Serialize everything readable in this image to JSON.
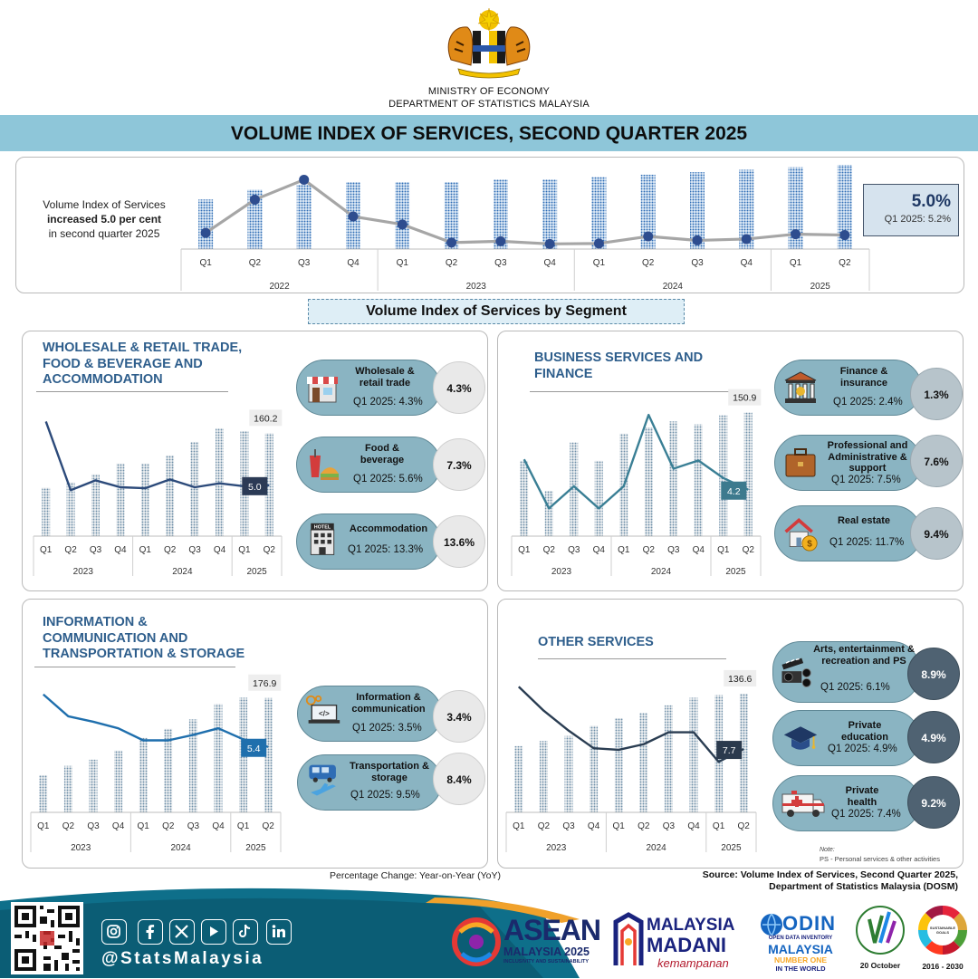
{
  "header": {
    "ministry": "MINISTRY OF ECONOMY",
    "department": "DEPARTMENT OF STATISTICS MALAYSIA",
    "title": "VOLUME INDEX OF SERVICES, SECOND QUARTER 2025"
  },
  "headline": {
    "note_line1": "Volume Index of Services",
    "note_line2": "increased 5.0 per cent",
    "note_line3": "in second quarter 2025",
    "kpi_value": "5.0%",
    "kpi_prev": "Q1 2025: 5.2%"
  },
  "segment_heading": "Volume Index of Services by Segment",
  "chart_data": [
    {
      "id": "overall",
      "type": "bar",
      "categories": [
        "Q1",
        "Q2",
        "Q3",
        "Q4",
        "Q1",
        "Q2",
        "Q3",
        "Q4",
        "Q1",
        "Q2",
        "Q3",
        "Q4",
        "Q1",
        "Q2"
      ],
      "years": [
        {
          "label": "2022",
          "span": 4
        },
        {
          "label": "2023",
          "span": 4
        },
        {
          "label": "2024",
          "span": 4
        },
        {
          "label": "2025",
          "span": 2
        }
      ],
      "series": [
        {
          "type": "bar",
          "values": [
            116,
            120,
            122,
            123,
            123,
            123,
            124,
            124,
            125,
            126,
            127,
            128,
            129,
            130
          ]
        },
        {
          "type": "line",
          "values": [
            5.5,
            13.0,
            17.5,
            9.2,
            7.4,
            3.3,
            3.6,
            3.0,
            3.1,
            4.7,
            3.8,
            4.1,
            5.2,
            5.0
          ]
        }
      ],
      "labels": [],
      "title": "",
      "xlabel": "",
      "ylabel": "",
      "grid": false
    },
    {
      "id": "wholesale",
      "type": "bar",
      "title": "WHOLESALE & RETAIL TRADE, FOOD & BEVERAGE AND ACCOMMODATION",
      "categories": [
        "Q1",
        "Q2",
        "Q3",
        "Q4",
        "Q1",
        "Q2",
        "Q3",
        "Q4",
        "Q1",
        "Q2"
      ],
      "years": [
        {
          "label": "2023",
          "span": 4
        },
        {
          "label": "2024",
          "span": 4
        },
        {
          "label": "2025",
          "span": 2
        }
      ],
      "series": [
        {
          "type": "bar",
          "values": [
            140,
            142,
            145,
            149,
            149,
            152,
            157,
            162,
            161,
            160.2
          ]
        },
        {
          "type": "line",
          "values": [
            11.5,
            4.5,
            5.5,
            4.8,
            4.7,
            5.6,
            4.8,
            5.2,
            4.9,
            5.0
          ]
        }
      ],
      "labels": [
        "160.2",
        "5.0"
      ],
      "xlabel": "",
      "ylabel": "",
      "grid": false
    },
    {
      "id": "business",
      "type": "bar",
      "title": "BUSINESS SERVICES AND FINANCE",
      "categories": [
        "Q1",
        "Q2",
        "Q3",
        "Q4",
        "Q1",
        "Q2",
        "Q3",
        "Q4",
        "Q1",
        "Q2"
      ],
      "years": [
        {
          "label": "2023",
          "span": 4
        },
        {
          "label": "2024",
          "span": 4
        },
        {
          "label": "2025",
          "span": 2
        }
      ],
      "series": [
        {
          "type": "bar",
          "values": [
            135,
            125,
            141,
            135,
            144,
            146,
            148,
            147,
            150,
            150.9
          ]
        },
        {
          "type": "line",
          "values": [
            6.8,
            2.6,
            4.5,
            2.6,
            4.5,
            10.6,
            6.0,
            6.7,
            5.2,
            4.2
          ]
        }
      ],
      "labels": [
        "150.9",
        "4.2"
      ],
      "xlabel": "",
      "ylabel": "",
      "grid": false
    },
    {
      "id": "infocomm",
      "type": "bar",
      "title": "INFORMATION & COMMUNICATION AND TRANSPORTATION & STORAGE",
      "categories": [
        "Q1",
        "Q2",
        "Q3",
        "Q4",
        "Q1",
        "Q2",
        "Q3",
        "Q4",
        "Q1",
        "Q2"
      ],
      "years": [
        {
          "label": "2023",
          "span": 4
        },
        {
          "label": "2024",
          "span": 4
        },
        {
          "label": "2025",
          "span": 2
        }
      ],
      "series": [
        {
          "type": "bar",
          "values": [
            152,
            155,
            157,
            160,
            164,
            167,
            170,
            175,
            177,
            176.9
          ]
        },
        {
          "type": "line",
          "values": [
            10.2,
            8.2,
            7.7,
            7.1,
            6.0,
            6.0,
            6.5,
            7.1,
            6.1,
            5.4
          ]
        }
      ],
      "labels": [
        "176.9",
        "5.4"
      ],
      "xlabel": "",
      "ylabel": "",
      "grid": false
    },
    {
      "id": "other",
      "type": "bar",
      "title": "OTHER SERVICES",
      "categories": [
        "Q1",
        "Q2",
        "Q3",
        "Q4",
        "Q1",
        "Q2",
        "Q3",
        "Q4",
        "Q1",
        "Q2"
      ],
      "years": [
        {
          "label": "2023",
          "span": 4
        },
        {
          "label": "2024",
          "span": 4
        },
        {
          "label": "2025",
          "span": 2
        }
      ],
      "series": [
        {
          "type": "bar",
          "values": [
            116,
            118,
            120,
            124,
            127,
            129,
            132,
            135,
            136,
            136.6
          ]
        },
        {
          "type": "line",
          "values": [
            15.5,
            12.5,
            10.0,
            7.8,
            7.6,
            8.3,
            9.8,
            9.8,
            6.1,
            7.7
          ]
        }
      ],
      "labels": [
        "136.6",
        "7.7"
      ],
      "xlabel": "",
      "ylabel": "",
      "grid": false
    }
  ],
  "pills": {
    "wholesale_retail": {
      "name": "Wholesale & retail trade",
      "prev": "Q1 2025: 4.3%",
      "value": "4.3%"
    },
    "food_beverage": {
      "name": "Food & beverage",
      "prev": "Q1 2025: 5.6%",
      "value": "7.3%"
    },
    "accommodation": {
      "name": "Accommodation",
      "prev": "Q1 2025: 13.3%",
      "value": "13.6%",
      "icon_text": "HOTEL"
    },
    "finance": {
      "name": "Finance & insurance",
      "prev": "Q1 2025: 2.4%",
      "value": "1.3%"
    },
    "professional": {
      "name": "Professional and Administrative & support",
      "prev": "Q1 2025: 7.5%",
      "value": "7.6%"
    },
    "real_estate": {
      "name": "Real estate",
      "prev": "Q1 2025: 11.7%",
      "value": "9.4%"
    },
    "information": {
      "name": "Information & communication",
      "prev": "Q1 2025: 3.5%",
      "value": "3.4%"
    },
    "transport": {
      "name": "Transportation & storage",
      "prev": "Q1 2025: 9.5%",
      "value": "8.4%"
    },
    "arts": {
      "name": "Arts, entertainment & recreation and PS",
      "prev": "Q1 2025: 6.1%",
      "value": "8.9%"
    },
    "education": {
      "name": "Private education",
      "prev": "Q1 2025: 4.9%",
      "value": "4.9%"
    },
    "health": {
      "name": "Private health",
      "prev": "Q1 2025: 7.4%",
      "value": "9.2%"
    }
  },
  "notes": {
    "note_label": "Note:",
    "note_text": "PS - Personal services & other activities",
    "pct_change": "Percentage Change: Year-on-Year (YoY)",
    "source_line1": "Source: Volume Index of Services, Second Quarter 2025,",
    "source_line2": "Department of Statistics Malaysia (DOSM)"
  },
  "footer": {
    "handle": "@StatsMalaysia",
    "asean_main": "ASEAN",
    "asean_sub": "MALAYSIA 2025",
    "asean_tag": "INCLUSIVITY AND SUSTAINABILITY",
    "madani_1": "MALAYSIA",
    "madani_2": "MADANI",
    "madani_3": "kemampanan",
    "odin_1": "ODIN",
    "odin_2": "OPEN DATA INVENTORY",
    "odin_3": "MALAYSIA",
    "odin_4": "NUMBER ONE",
    "odin_5": "IN THE WORLD",
    "stats_day": "20 October",
    "sdg": "SUSTAINABLE DEVELOPMENT GOALS MALAYSIA",
    "sdg_years": "2016 - 2030"
  },
  "colors": {
    "title_band": "#8ec6d9",
    "bar": "#2f6db5",
    "line_overall": "#a6a6a6",
    "point": "#2e4d8f",
    "line_wholesale": "#2c4a7a",
    "line_business": "#3a7f95",
    "line_infocomm": "#1f6fad",
    "line_other": "#2a3d52",
    "footer": "#0e6f8a"
  }
}
